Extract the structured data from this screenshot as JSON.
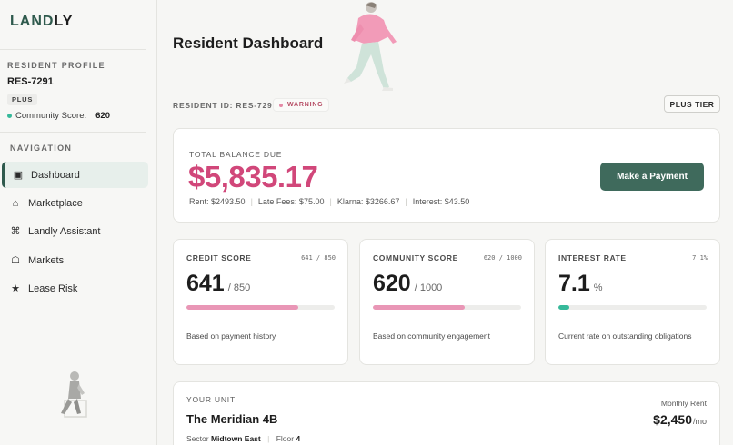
{
  "brand": {
    "logo_part1": "LAND",
    "logo_part2": "LY",
    "accent": "#2f5a4d",
    "balance_color": "#d1477a"
  },
  "sidebar": {
    "profile_title": "RESIDENT PROFILE",
    "resident_id": "RES-7291",
    "tier_badge": "PLUS",
    "community_label": "Community Score:",
    "community_value": "620",
    "nav_title": "NAVIGATION",
    "items": [
      {
        "label": "Dashboard",
        "icon": "dashboard-icon",
        "glyph": "▣"
      },
      {
        "label": "Marketplace",
        "icon": "home-icon",
        "glyph": "⌂"
      },
      {
        "label": "Landly Assistant",
        "icon": "command-icon",
        "glyph": "⌘"
      },
      {
        "label": "Markets",
        "icon": "market-icon",
        "glyph": "☖"
      },
      {
        "label": "Lease Risk",
        "icon": "star-icon",
        "glyph": "★"
      }
    ]
  },
  "header": {
    "title": "Resident Dashboard",
    "resident_id_line": "RESIDENT ID: RES-7291",
    "status": "WARNING",
    "tier_button": "PLUS TIER"
  },
  "balance": {
    "label": "TOTAL BALANCE DUE",
    "amount": "$5,835.17",
    "rent": "Rent: $2493.50",
    "late_fees": "Late Fees: $75.00",
    "klarna": "Klarna: $3266.67",
    "interest": "Interest: $43.50",
    "pay_button": "Make a Payment"
  },
  "metrics": [
    {
      "label": "CREDIT SCORE",
      "range": "641 / 850",
      "value": "641",
      "suffix": "/ 850",
      "fraction": 0.754,
      "color": "#e996b6",
      "desc": "Based on payment history"
    },
    {
      "label": "COMMUNITY SCORE",
      "range": "620 / 1000",
      "value": "620",
      "suffix": "/ 1000",
      "fraction": 0.62,
      "color": "#e996b6",
      "desc": "Based on community engagement"
    },
    {
      "label": "INTEREST RATE",
      "range": "7.1%",
      "value": "7.1",
      "suffix": "%",
      "fraction": 0.071,
      "color": "#36b99a",
      "desc": "Current rate on outstanding obligations"
    }
  ],
  "unit": {
    "label": "YOUR UNIT",
    "name": "The Meridian 4B",
    "sector_label": "Sector",
    "sector_value": "Midtown East",
    "floor_label": "Floor",
    "floor_value": "4",
    "rent_label": "Monthly Rent",
    "rent_amount": "$2,450",
    "rent_period": "/mo"
  }
}
